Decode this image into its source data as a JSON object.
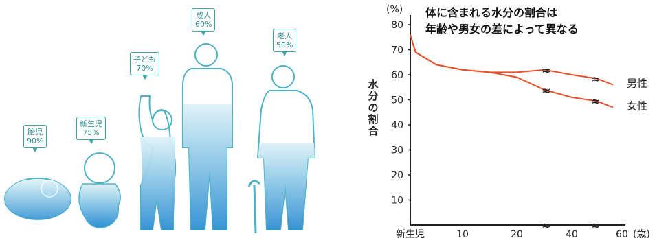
{
  "figures": [
    {
      "label": "胎児",
      "pct": "90%"
    },
    {
      "label": "新生児",
      "pct": "75%"
    },
    {
      "label": "子ども",
      "pct": "70%"
    },
    {
      "label": "成人",
      "pct": "60%"
    },
    {
      "label": "老人",
      "pct": "50%"
    }
  ],
  "colors": {
    "water_top": "#e9f6fb",
    "water_bottom": "#2f8fd3",
    "outline": "#4fb3c6",
    "callout": "#3aa6a6",
    "line": "#e8502a",
    "axis": "#222222"
  },
  "chart_data": {
    "type": "line",
    "title_line1": "体に含まれる水分の割合は",
    "title_line2": "年齢や男女の差によって異なる",
    "y_unit": "(%)",
    "ylabel": "水分の割合",
    "x_unit": "(歳)",
    "ylim": [
      0,
      80
    ],
    "yticks": [
      "10",
      "20",
      "30",
      "40",
      "50",
      "60",
      "70",
      "80"
    ],
    "xticks": [
      "新生児",
      "10",
      "20",
      "40",
      "60"
    ],
    "break_marks": [
      "≈",
      "≈"
    ],
    "series": [
      {
        "name": "男性",
        "points": [
          [
            0,
            76
          ],
          [
            1,
            69
          ],
          [
            5,
            64
          ],
          [
            10,
            62
          ],
          [
            15,
            61
          ],
          [
            20,
            61
          ],
          [
            28,
            62
          ],
          [
            40,
            60
          ],
          [
            48,
            58.5
          ],
          [
            55,
            56
          ]
        ]
      },
      {
        "name": "女性",
        "points": [
          [
            0,
            76
          ],
          [
            1,
            69
          ],
          [
            5,
            64
          ],
          [
            10,
            62
          ],
          [
            15,
            61
          ],
          [
            20,
            59
          ],
          [
            28,
            54
          ],
          [
            40,
            51
          ],
          [
            48,
            49.5
          ],
          [
            55,
            47
          ]
        ]
      }
    ]
  }
}
